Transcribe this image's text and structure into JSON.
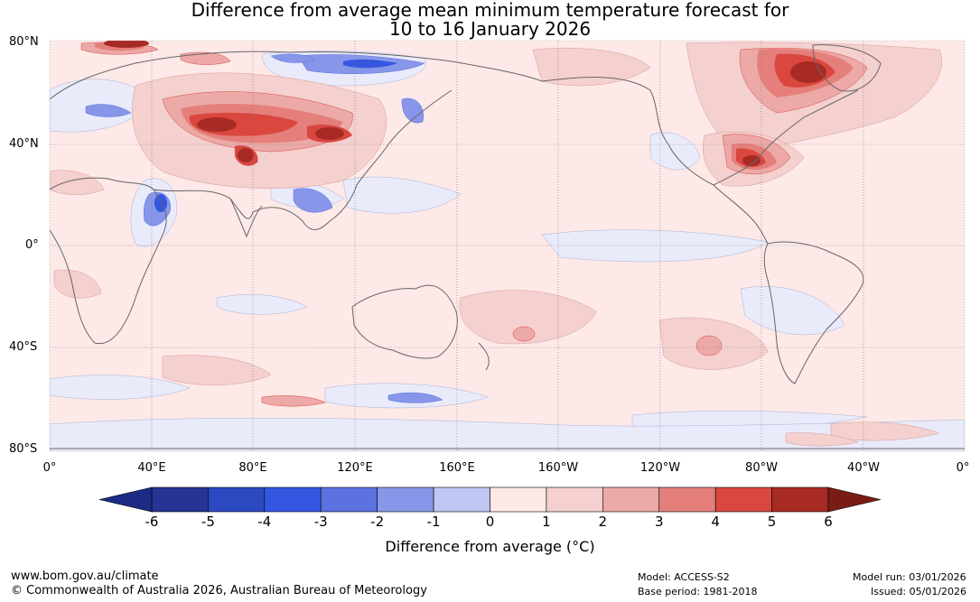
{
  "title": {
    "line1": "Difference from average mean minimum temperature forecast for",
    "line2": "10 to 16 January 2026"
  },
  "map": {
    "lat_labels": [
      "80°N",
      "40°N",
      "0°",
      "40°S",
      "80°S"
    ],
    "lon_labels": [
      "0°",
      "40°E",
      "80°E",
      "120°E",
      "160°E",
      "160°W",
      "120°W",
      "80°W",
      "40°W",
      "0°"
    ]
  },
  "colorbar": {
    "ticks": [
      "-6",
      "-5",
      "-4",
      "-3",
      "-2",
      "-1",
      "0",
      "1",
      "2",
      "3",
      "4",
      "5",
      "6"
    ],
    "colors": [
      "#263494",
      "#2c49c1",
      "#3456e0",
      "#5b72e0",
      "#8796e8",
      "#bfc7f2",
      "#e9ebfb",
      "#fce9e8",
      "#f4d0cf",
      "#eca9a7",
      "#e57f7b",
      "#d9473f",
      "#a82a24"
    ],
    "under_color": "#1c2c85",
    "over_color": "#7a1c16",
    "label": "Difference from average (°C)"
  },
  "footer": {
    "url": "www.bom.gov.au/climate",
    "copyright": "© Commonwealth of Australia 2026, Australian Bureau of Meteorology",
    "model": "Model: ACCESS-S2",
    "base_period": "Base period: 1981-2018",
    "model_run": "Model run: 03/01/2026",
    "issued": "Issued: 05/01/2026"
  }
}
